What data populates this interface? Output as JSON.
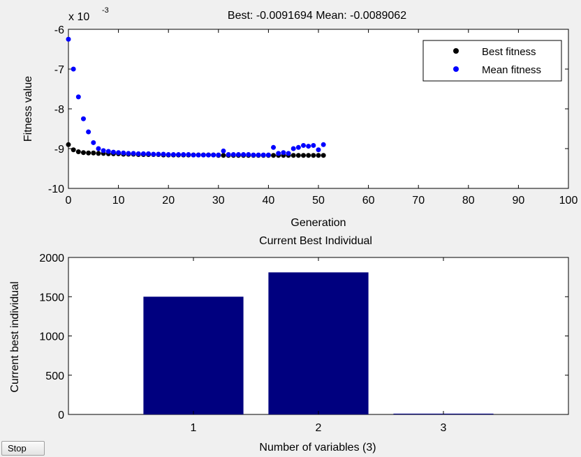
{
  "controls": {
    "stop_label": "Stop"
  },
  "chart_data": [
    {
      "type": "scatter",
      "title": "Best: -0.0091694 Mean: -0.0089062",
      "xlabel": "Generation",
      "ylabel": "Fitness value",
      "y_scale_note": "x 10",
      "y_scale_exponent": "-3",
      "xlim": [
        0,
        100
      ],
      "ylim": [
        -10,
        -6
      ],
      "x_ticks": [
        0,
        10,
        20,
        30,
        40,
        50,
        60,
        70,
        80,
        90,
        100
      ],
      "y_ticks": [
        -6,
        -7,
        -8,
        -9,
        -10
      ],
      "legend_position": "top-right",
      "grid": false,
      "series": [
        {
          "name": "Best fitness",
          "color": "#000000",
          "x": [
            0,
            1,
            2,
            3,
            4,
            5,
            6,
            7,
            8,
            9,
            10,
            11,
            12,
            13,
            14,
            15,
            16,
            17,
            18,
            19,
            20,
            21,
            22,
            23,
            24,
            25,
            26,
            27,
            28,
            29,
            30,
            31,
            32,
            33,
            34,
            35,
            36,
            37,
            38,
            39,
            40,
            41,
            42,
            43,
            44,
            45,
            46,
            47,
            48,
            49,
            50,
            51
          ],
          "y": [
            -8.9,
            -9.03,
            -9.08,
            -9.1,
            -9.11,
            -9.11,
            -9.12,
            -9.12,
            -9.13,
            -9.13,
            -9.13,
            -9.14,
            -9.14,
            -9.14,
            -9.15,
            -9.15,
            -9.15,
            -9.15,
            -9.15,
            -9.16,
            -9.16,
            -9.16,
            -9.16,
            -9.16,
            -9.16,
            -9.16,
            -9.16,
            -9.16,
            -9.16,
            -9.16,
            -9.17,
            -9.17,
            -9.17,
            -9.17,
            -9.17,
            -9.17,
            -9.17,
            -9.17,
            -9.17,
            -9.17,
            -9.17,
            -9.17,
            -9.17,
            -9.17,
            -9.17,
            -9.17,
            -9.17,
            -9.17,
            -9.17,
            -9.17,
            -9.17,
            -9.17
          ]
        },
        {
          "name": "Mean fitness",
          "color": "#0000ff",
          "x": [
            0,
            1,
            2,
            3,
            4,
            5,
            6,
            7,
            8,
            9,
            10,
            11,
            12,
            13,
            14,
            15,
            16,
            17,
            18,
            19,
            20,
            21,
            22,
            23,
            24,
            25,
            26,
            27,
            28,
            29,
            30,
            31,
            32,
            33,
            34,
            35,
            36,
            37,
            38,
            39,
            40,
            41,
            42,
            43,
            44,
            45,
            46,
            47,
            48,
            49,
            50,
            51
          ],
          "y": [
            -6.25,
            -7.0,
            -7.7,
            -8.25,
            -8.58,
            -8.85,
            -9.0,
            -9.05,
            -9.07,
            -9.09,
            -9.1,
            -9.11,
            -9.12,
            -9.12,
            -9.13,
            -9.13,
            -9.13,
            -9.14,
            -9.14,
            -9.14,
            -9.15,
            -9.15,
            -9.15,
            -9.15,
            -9.15,
            -9.16,
            -9.16,
            -9.16,
            -9.16,
            -9.16,
            -9.16,
            -9.06,
            -9.15,
            -9.15,
            -9.15,
            -9.15,
            -9.15,
            -9.16,
            -9.16,
            -9.16,
            -9.16,
            -8.97,
            -9.12,
            -9.1,
            -9.12,
            -9.0,
            -8.97,
            -8.92,
            -8.94,
            -8.92,
            -9.03,
            -8.9
          ]
        }
      ]
    },
    {
      "type": "bar",
      "title": "Current Best Individual",
      "xlabel": "Number of variables (3)",
      "ylabel": "Current best individual",
      "categories": [
        "1",
        "2",
        "3"
      ],
      "values": [
        1500,
        1810,
        10
      ],
      "ylim": [
        0,
        2000
      ],
      "y_ticks": [
        0,
        500,
        1000,
        1500,
        2000
      ],
      "bar_color": "#00007f",
      "grid": false
    }
  ]
}
